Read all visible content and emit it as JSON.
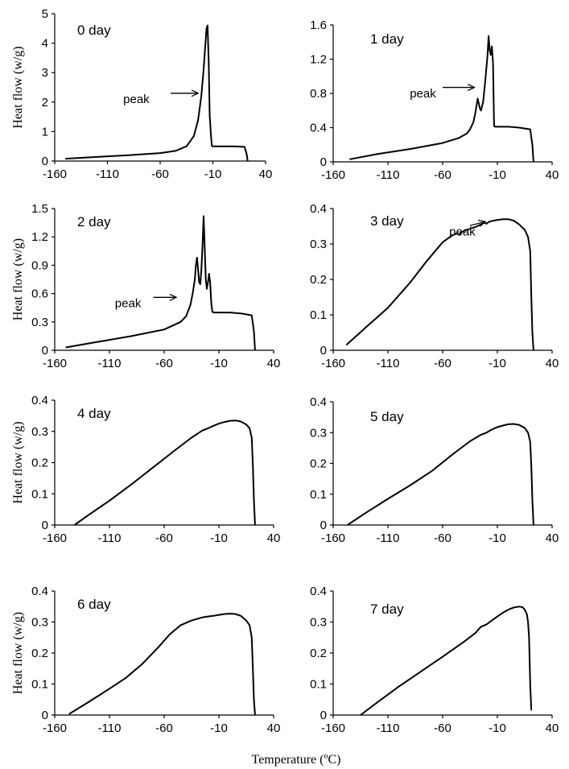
{
  "figure": {
    "xlabel": "Temperature (ºC)",
    "ylabel": "Heat flow (w/g)"
  },
  "chart_data": [
    {
      "type": "line",
      "title": "0 day",
      "xlim": [
        -160,
        40
      ],
      "ylim": [
        0,
        5
      ],
      "xticks": [
        "-160",
        "-110",
        "-60",
        "-10",
        "40"
      ],
      "yticks": [
        "0",
        "1",
        "2",
        "3",
        "4",
        "5"
      ],
      "annotation": {
        "text": "peak",
        "text_x": -95,
        "text_y": 2.1,
        "arrow_from": [
          -50,
          2.3
        ],
        "arrow_to": [
          -24,
          2.3
        ]
      },
      "series": [
        {
          "x": [
            -150,
            -120,
            -90,
            -60,
            -45,
            -35,
            -28,
            -24,
            -21,
            -19,
            -17,
            -16,
            -15,
            -14,
            -13,
            -12.5,
            -12,
            -11,
            -10,
            -9,
            0,
            10,
            20,
            22,
            23
          ],
          "y": [
            0.08,
            0.14,
            0.2,
            0.27,
            0.35,
            0.5,
            0.85,
            1.4,
            2.2,
            3.0,
            4.0,
            4.5,
            4.6,
            3.4,
            1.5,
            1.3,
            0.95,
            0.52,
            0.5,
            0.5,
            0.5,
            0.5,
            0.48,
            0.25,
            0.0
          ]
        }
      ]
    },
    {
      "type": "line",
      "title": "1 day",
      "xlim": [
        -160,
        40
      ],
      "ylim": [
        0,
        1.6
      ],
      "xticks": [
        "-160",
        "-110",
        "-60",
        "-10",
        "40"
      ],
      "yticks": [
        "0",
        "0.4",
        "0.8",
        "1.2",
        "1.6"
      ],
      "annotation": {
        "text": "peak",
        "text_x": -90,
        "text_y": 0.8,
        "arrow_from": [
          -60,
          0.87
        ],
        "arrow_to": [
          -31,
          0.87
        ]
      },
      "series": [
        {
          "x": [
            -145,
            -120,
            -90,
            -60,
            -45,
            -38,
            -35,
            -32,
            -30,
            -28,
            -26,
            -25,
            -23,
            -21,
            -19,
            -18,
            -17,
            -16,
            -15,
            -14,
            -13,
            -12,
            -11,
            -10,
            0,
            10,
            20,
            22,
            23
          ],
          "y": [
            0.03,
            0.09,
            0.15,
            0.22,
            0.28,
            0.33,
            0.38,
            0.46,
            0.58,
            0.74,
            0.63,
            0.6,
            0.7,
            0.95,
            1.25,
            1.47,
            1.3,
            1.25,
            1.35,
            1.15,
            0.42,
            0.41,
            0.41,
            0.41,
            0.41,
            0.4,
            0.38,
            0.2,
            0.0
          ]
        }
      ]
    },
    {
      "type": "line",
      "title": "2 day",
      "xlim": [
        -160,
        40
      ],
      "ylim": [
        0,
        1.5
      ],
      "xticks": [
        "-160",
        "-110",
        "-60",
        "-10",
        "40"
      ],
      "yticks": [
        "0",
        "0.3",
        "0.6",
        "0.9",
        "1.2",
        "1.5"
      ],
      "annotation": {
        "text": "peak",
        "text_x": -105,
        "text_y": 0.5,
        "arrow_from": [
          -70,
          0.56
        ],
        "arrow_to": [
          -49,
          0.56
        ]
      },
      "series": [
        {
          "x": [
            -150,
            -120,
            -90,
            -60,
            -45,
            -40,
            -36,
            -34,
            -32,
            -31,
            -30,
            -29,
            -28,
            -27,
            -26,
            -25,
            -24,
            -23,
            -22,
            -21,
            -20,
            -19,
            -18,
            -17,
            -16,
            -15,
            -10,
            0,
            10,
            20,
            22,
            23
          ],
          "y": [
            0.03,
            0.09,
            0.15,
            0.22,
            0.3,
            0.36,
            0.48,
            0.6,
            0.75,
            0.9,
            0.98,
            0.85,
            0.72,
            0.7,
            0.85,
            1.1,
            1.42,
            1.1,
            0.75,
            0.65,
            0.72,
            0.81,
            0.72,
            0.5,
            0.41,
            0.4,
            0.4,
            0.4,
            0.39,
            0.37,
            0.2,
            0.0
          ]
        }
      ]
    },
    {
      "type": "line",
      "title": "3 day",
      "xlim": [
        -160,
        40
      ],
      "ylim": [
        0,
        0.4
      ],
      "xticks": [
        "-160",
        "-110",
        "-60",
        "-10",
        "40"
      ],
      "yticks": [
        "0",
        "0.1",
        "0.2",
        "0.3",
        "0.4"
      ],
      "annotation": {
        "text": "peak",
        "text_x": -54,
        "text_y": 0.335,
        "arrow_from": [
          -35,
          0.352
        ],
        "arrow_to": [
          -21,
          0.363
        ]
      },
      "series": [
        {
          "x": [
            -148,
            -130,
            -110,
            -90,
            -75,
            -60,
            -52,
            -47,
            -45,
            -43,
            -40,
            -35,
            -30,
            -25,
            -22,
            -20,
            -18,
            -15,
            -10,
            -5,
            0,
            5,
            10,
            15,
            18,
            20,
            21,
            22,
            23
          ],
          "y": [
            0.015,
            0.065,
            0.12,
            0.19,
            0.25,
            0.305,
            0.323,
            0.33,
            0.326,
            0.332,
            0.338,
            0.343,
            0.348,
            0.355,
            0.36,
            0.357,
            0.362,
            0.365,
            0.368,
            0.37,
            0.37,
            0.366,
            0.355,
            0.34,
            0.32,
            0.28,
            0.15,
            0.05,
            0.0
          ]
        }
      ]
    },
    {
      "type": "line",
      "title": "4 day",
      "xlim": [
        -160,
        40
      ],
      "ylim": [
        0,
        0.4
      ],
      "xticks": [
        "-160",
        "-110",
        "-60",
        "-10",
        "40"
      ],
      "yticks": [
        "0",
        "0.1",
        "0.2",
        "0.3",
        "0.4"
      ],
      "series": [
        {
          "x": [
            -142,
            -130,
            -110,
            -90,
            -70,
            -50,
            -35,
            -25,
            -20,
            -15,
            -10,
            -5,
            0,
            5,
            10,
            15,
            18,
            20,
            21,
            22,
            23
          ],
          "y": [
            0.0,
            0.03,
            0.078,
            0.13,
            0.185,
            0.24,
            0.28,
            0.303,
            0.31,
            0.318,
            0.325,
            0.33,
            0.334,
            0.335,
            0.332,
            0.322,
            0.31,
            0.28,
            0.19,
            0.08,
            0.0
          ]
        }
      ]
    },
    {
      "type": "line",
      "title": "5 day",
      "xlim": [
        -160,
        40
      ],
      "ylim": [
        0,
        0.4
      ],
      "xticks": [
        "-160",
        "-110",
        "-60",
        "-10",
        "40"
      ],
      "yticks": [
        "0",
        "0.1",
        "0.2",
        "0.3",
        "0.4"
      ],
      "series": [
        {
          "x": [
            -147,
            -130,
            -110,
            -90,
            -70,
            -50,
            -35,
            -25,
            -20,
            -15,
            -10,
            -5,
            0,
            5,
            10,
            15,
            18,
            20,
            21,
            22,
            23
          ],
          "y": [
            0.0,
            0.04,
            0.085,
            0.128,
            0.175,
            0.232,
            0.272,
            0.293,
            0.3,
            0.31,
            0.318,
            0.323,
            0.327,
            0.328,
            0.325,
            0.315,
            0.3,
            0.27,
            0.19,
            0.08,
            0.0
          ]
        }
      ]
    },
    {
      "type": "line",
      "title": "6 day",
      "xlim": [
        -160,
        40
      ],
      "ylim": [
        0,
        0.4
      ],
      "xticks": [
        "-160",
        "-110",
        "-60",
        "-10",
        "40"
      ],
      "yticks": [
        "0",
        "0.1",
        "0.2",
        "0.3",
        "0.4"
      ],
      "series": [
        {
          "x": [
            -147,
            -130,
            -110,
            -95,
            -80,
            -65,
            -55,
            -45,
            -35,
            -25,
            -20,
            -15,
            -10,
            -5,
            0,
            5,
            10,
            15,
            18,
            20,
            21,
            22,
            23
          ],
          "y": [
            0.003,
            0.04,
            0.085,
            0.12,
            0.165,
            0.22,
            0.26,
            0.29,
            0.305,
            0.315,
            0.318,
            0.32,
            0.323,
            0.326,
            0.327,
            0.326,
            0.32,
            0.305,
            0.29,
            0.25,
            0.15,
            0.05,
            0.0
          ]
        }
      ]
    },
    {
      "type": "line",
      "title": "7 day",
      "xlim": [
        -160,
        40
      ],
      "ylim": [
        0,
        0.4
      ],
      "xticks": [
        "-160",
        "-110",
        "-60",
        "-10",
        "40"
      ],
      "yticks": [
        "0",
        "0.1",
        "0.2",
        "0.3",
        "0.4"
      ],
      "series": [
        {
          "x": [
            -135,
            -120,
            -100,
            -80,
            -60,
            -40,
            -30,
            -25,
            -20,
            -15,
            -10,
            -5,
            0,
            5,
            10,
            13,
            15,
            17,
            18,
            19,
            20,
            21
          ],
          "y": [
            0.0,
            0.04,
            0.092,
            0.14,
            0.188,
            0.238,
            0.265,
            0.285,
            0.292,
            0.305,
            0.318,
            0.33,
            0.34,
            0.347,
            0.35,
            0.348,
            0.34,
            0.325,
            0.3,
            0.25,
            0.1,
            0.015
          ]
        }
      ]
    }
  ]
}
